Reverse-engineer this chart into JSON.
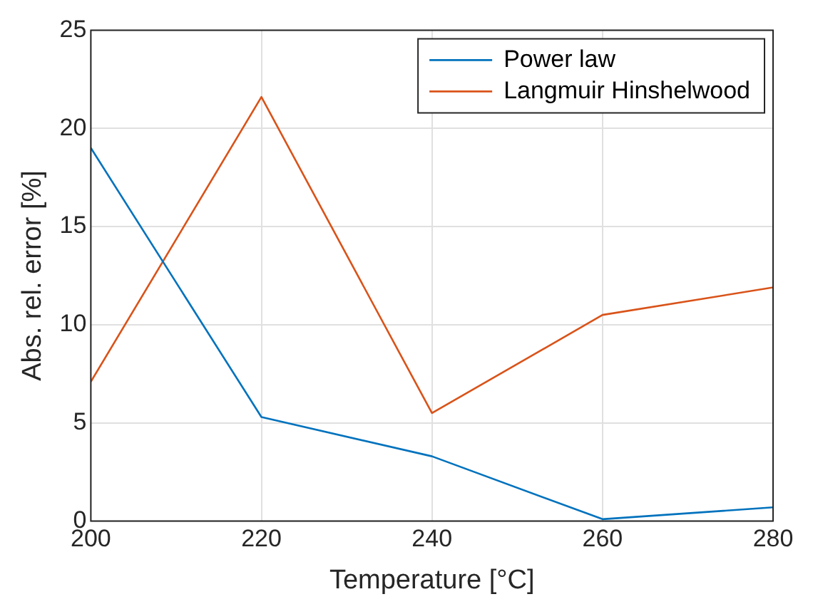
{
  "chart_data": {
    "type": "line",
    "xlabel": "Temperature [°C]",
    "ylabel": "Abs. rel. error [%]",
    "x": [
      200,
      220,
      240,
      260,
      280
    ],
    "series": [
      {
        "name": "Power law",
        "color": "#0072bd",
        "values": [
          19.0,
          5.3,
          3.3,
          0.1,
          0.7
        ]
      },
      {
        "name": "Langmuir Hinshelwood",
        "color": "#d95319",
        "values": [
          7.1,
          21.6,
          5.5,
          10.5,
          11.9
        ]
      }
    ],
    "xlim": [
      200,
      280
    ],
    "xticks": [
      200,
      220,
      240,
      260,
      280
    ],
    "ylim": [
      0,
      25
    ],
    "yticks": [
      0,
      5,
      10,
      15,
      20,
      25
    ],
    "grid": true,
    "legend": "top right",
    "marker": "none",
    "line_style": "solid"
  }
}
